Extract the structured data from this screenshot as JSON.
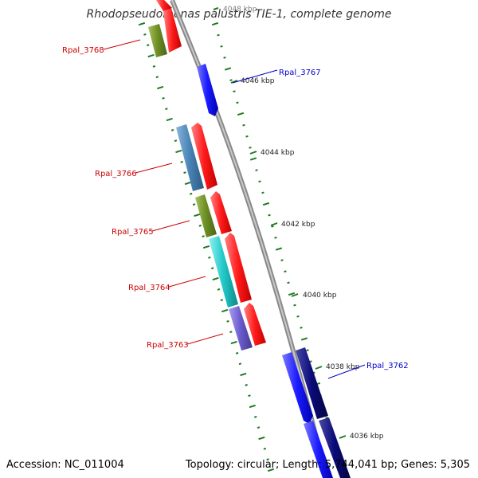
{
  "title": "Rhodopseudomonas palustris TIE-1, complete genome",
  "footer": {
    "accession": "Accession: NC_011004",
    "summary": "Topology: circular; Length: 5,744,041 bp; Genes: 5,305"
  },
  "ticks": [
    {
      "label": "4048 kbp"
    },
    {
      "label": "4046 kbp"
    },
    {
      "label": "4044 kbp"
    },
    {
      "label": "4042 kbp"
    },
    {
      "label": "4040 kbp"
    },
    {
      "label": "4038 kbp"
    },
    {
      "label": "4036 kbp"
    }
  ],
  "gene_labels": {
    "rpal_3768": "Rpal_3768",
    "rpal_3767": "Rpal_3767",
    "rpal_3766": "Rpal_3766",
    "rpal_3765": "Rpal_3765",
    "rpal_3764": "Rpal_3764",
    "rpal_3763": "Rpal_3763",
    "rpal_3762": "Rpal_3762"
  },
  "colors": {
    "backbone": "#8a8a8a",
    "reverse_label": "#cc0000",
    "forward_label": "#0000cc",
    "cds_red": "#ff1a1a",
    "cds_blue": "#1a1aff",
    "cds_navy": "#0a0a78",
    "cog_olive": "#6b8e23",
    "cog_steel": "#4682b4",
    "cog_cyan": "#20c8c8",
    "cog_slate": "#6a5acd",
    "dotted_green": "#1f7a1f"
  }
}
